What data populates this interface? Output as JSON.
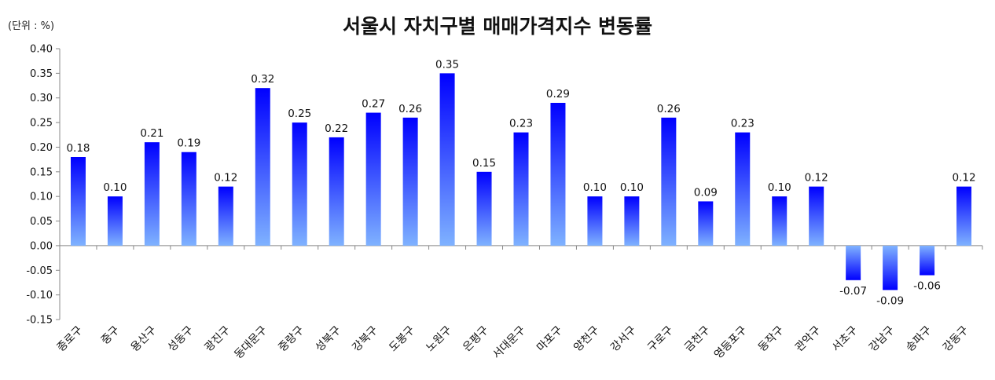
{
  "chart_data": {
    "type": "bar",
    "title": "서울시 자치구별 매매가격지수 변동률",
    "unit_label": "(단위 : %)",
    "xlabel": "",
    "ylabel": "",
    "ylim": [
      -0.15,
      0.4
    ],
    "yticks": [
      "0.40",
      "0.35",
      "0.30",
      "0.25",
      "0.20",
      "0.15",
      "0.10",
      "0.05",
      "0.00",
      "-0.05",
      "-0.10",
      "-0.15"
    ],
    "categories": [
      "종로구",
      "중구",
      "용산구",
      "성동구",
      "광진구",
      "동대문구",
      "중랑구",
      "성북구",
      "강북구",
      "도봉구",
      "노원구",
      "은평구",
      "서대문구",
      "마포구",
      "양천구",
      "강서구",
      "구로구",
      "금천구",
      "영등포구",
      "동작구",
      "관악구",
      "서초구",
      "강남구",
      "송파구",
      "강동구"
    ],
    "values": [
      0.18,
      0.1,
      0.21,
      0.19,
      0.12,
      0.32,
      0.25,
      0.22,
      0.27,
      0.26,
      0.35,
      0.15,
      0.23,
      0.29,
      0.1,
      0.1,
      0.26,
      0.09,
      0.23,
      0.1,
      0.12,
      -0.07,
      -0.09,
      -0.06,
      0.12
    ],
    "value_labels": [
      "0.18",
      "0.10",
      "0.21",
      "0.19",
      "0.12",
      "0.32",
      "0.25",
      "0.22",
      "0.27",
      "0.26",
      "0.35",
      "0.15",
      "0.23",
      "0.29",
      "0.10",
      "0.10",
      "0.26",
      "0.09",
      "0.23",
      "0.10",
      "0.12",
      "-0.07",
      "-0.09",
      "-0.06",
      "0.12"
    ],
    "grid": false,
    "legend": "none",
    "colors": {
      "bar_top": "#0000ff",
      "bar_bottom": "#7fb2ff",
      "axis": "#888888"
    }
  }
}
